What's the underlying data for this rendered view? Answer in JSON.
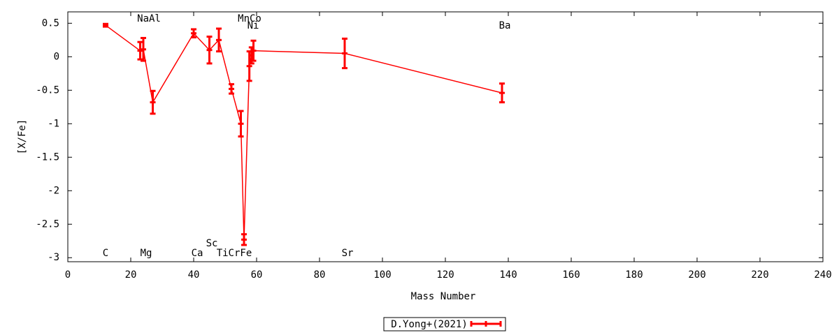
{
  "chart_data": {
    "type": "line",
    "x_label": "Mass Number",
    "y_label": "[X/Fe]",
    "xlim": [
      0,
      240
    ],
    "xticks": [
      0,
      20,
      40,
      60,
      80,
      100,
      120,
      140,
      160,
      180,
      200,
      220,
      240
    ],
    "ylim": [
      -3.06,
      0.67
    ],
    "yticks": [
      0.5,
      0,
      -0.5,
      -1,
      -1.5,
      -2,
      -2.5,
      -3
    ],
    "annotations": [
      "C",
      "NaAl",
      "Mg",
      "Ca",
      "Sc",
      "TiCrFe",
      "MnCo",
      "Ni",
      "Sr",
      "Ba"
    ],
    "series": [
      {
        "name": "D.Yong+(2021)",
        "color": "#ff0000",
        "x": [
          12,
          23,
          24,
          27,
          40,
          45,
          48,
          52,
          55,
          56,
          57.7,
          58.4,
          59,
          88,
          138
        ],
        "values": [
          0.47,
          0.09,
          0.11,
          -0.68,
          0.35,
          0.1,
          0.25,
          -0.48,
          -1.0,
          -2.73,
          -0.14,
          0.02,
          0.09,
          0.05,
          -0.54
        ],
        "errors": [
          0.02,
          0.13,
          0.17,
          0.17,
          0.06,
          0.2,
          0.17,
          0.07,
          0.19,
          0.08,
          0.22,
          0.12,
          0.15,
          0.22,
          0.14
        ]
      }
    ]
  }
}
